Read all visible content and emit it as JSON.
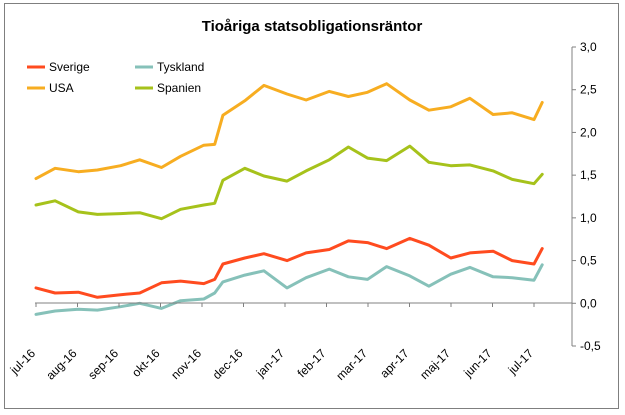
{
  "chart_data": {
    "type": "line",
    "title": "Tioåriga statsobligationsräntor",
    "x_tick_labels": [
      "jul-16",
      "aug-16",
      "sep-16",
      "okt-16",
      "nov-16",
      "dec-16",
      "jan-17",
      "feb-17",
      "mar-17",
      "apr-17",
      "maj-17",
      "jun-17",
      "jul-17"
    ],
    "y_tick_labels": [
      "3,0",
      "2,5",
      "2,0",
      "1,5",
      "1,0",
      "0,5",
      "0,0",
      "-0,5"
    ],
    "ylim": [
      -0.5,
      3.0
    ],
    "y_axis_side": "right",
    "legend_position": "top-left",
    "grid": false,
    "x": [
      "2016-07-01",
      "2016-07-15",
      "2016-08-01",
      "2016-08-15",
      "2016-09-01",
      "2016-09-15",
      "2016-10-01",
      "2016-10-15",
      "2016-11-01",
      "2016-11-09",
      "2016-11-15",
      "2016-12-01",
      "2016-12-15",
      "2017-01-01",
      "2017-01-15",
      "2017-02-01",
      "2017-02-15",
      "2017-03-01",
      "2017-03-15",
      "2017-04-01",
      "2017-04-15",
      "2017-05-01",
      "2017-05-15",
      "2017-06-01",
      "2017-06-15",
      "2017-07-01",
      "2017-07-07"
    ],
    "series": [
      {
        "name": "Sverige",
        "color": "#ff4b1f",
        "values": [
          0.18,
          0.12,
          0.13,
          0.07,
          0.1,
          0.12,
          0.24,
          0.26,
          0.23,
          0.28,
          0.46,
          0.53,
          0.58,
          0.5,
          0.59,
          0.63,
          0.73,
          0.71,
          0.64,
          0.76,
          0.68,
          0.53,
          0.59,
          0.61,
          0.5,
          0.46,
          0.64
        ]
      },
      {
        "name": "USA",
        "color": "#f7ad21",
        "values": [
          1.46,
          1.58,
          1.54,
          1.56,
          1.61,
          1.68,
          1.59,
          1.72,
          1.85,
          1.86,
          2.2,
          2.37,
          2.55,
          2.45,
          2.38,
          2.48,
          2.42,
          2.47,
          2.57,
          2.38,
          2.26,
          2.3,
          2.4,
          2.21,
          2.23,
          2.15,
          2.35
        ]
      },
      {
        "name": "Tyskland",
        "color": "#86c1b9",
        "values": [
          -0.13,
          -0.09,
          -0.07,
          -0.08,
          -0.04,
          0.0,
          -0.06,
          0.03,
          0.05,
          0.12,
          0.25,
          0.33,
          0.38,
          0.18,
          0.3,
          0.4,
          0.31,
          0.28,
          0.43,
          0.32,
          0.2,
          0.34,
          0.42,
          0.31,
          0.3,
          0.27,
          0.45
        ]
      },
      {
        "name": "Spanien",
        "color": "#a6c21b",
        "values": [
          1.15,
          1.2,
          1.07,
          1.04,
          1.05,
          1.06,
          0.99,
          1.1,
          1.15,
          1.17,
          1.44,
          1.58,
          1.49,
          1.43,
          1.55,
          1.68,
          1.83,
          1.7,
          1.67,
          1.84,
          1.65,
          1.61,
          1.62,
          1.55,
          1.45,
          1.4,
          1.51
        ]
      }
    ]
  }
}
